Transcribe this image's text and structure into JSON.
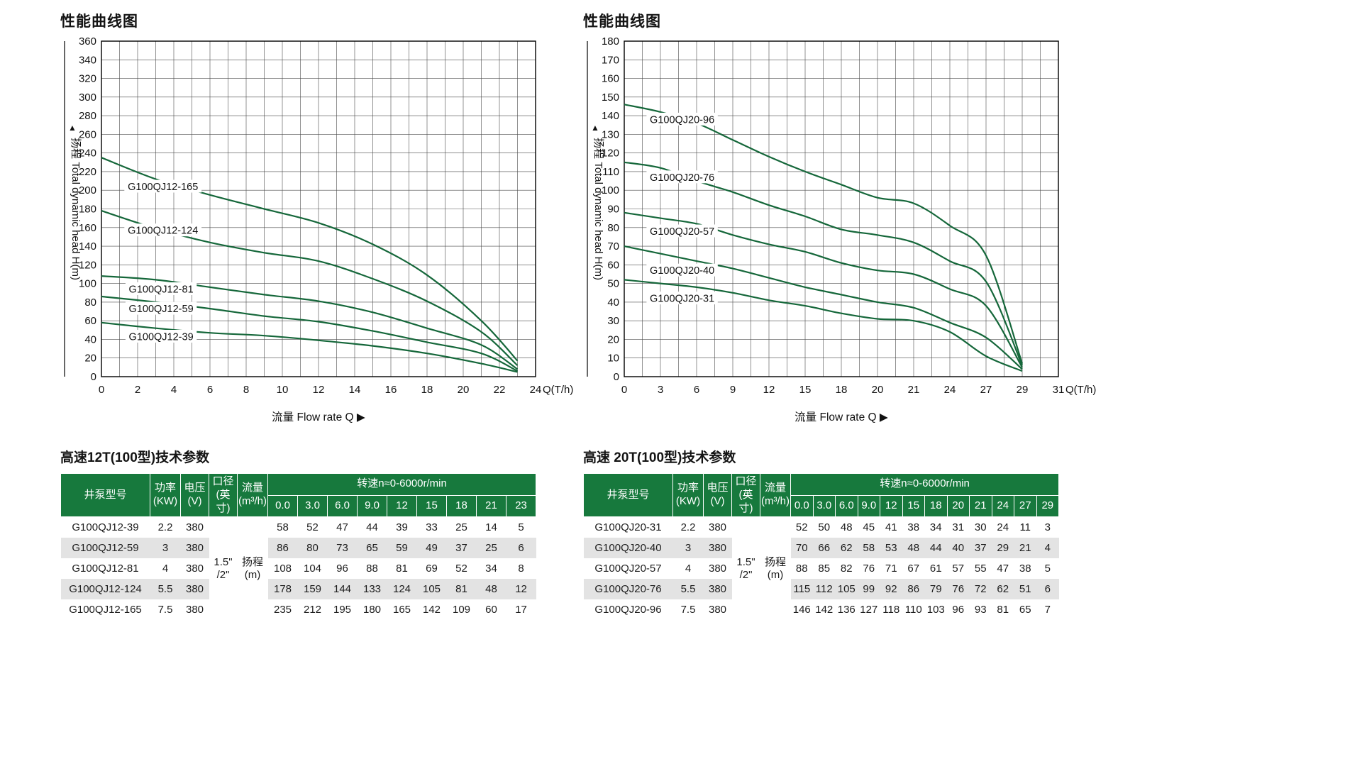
{
  "colors": {
    "curve": "#15673a",
    "table_header_bg": "#17793d",
    "row_alt_bg": "#e3e3e3",
    "grid": "#4a4a4a",
    "border": "#000000"
  },
  "chart_data": [
    {
      "type": "line",
      "title": "性能曲线图",
      "ylabel": "扬程 Total dynamic head H(m)",
      "y_arrow": "▲",
      "xlabel": "流量 Flow rate Q ▶",
      "x_unit": "Q(T/h)",
      "ylim": [
        0,
        360
      ],
      "y_tick_step": 20,
      "x_axis": {
        "equal_spacing": false,
        "max": 24,
        "tick_step": 2,
        "grid_step": 1
      },
      "x": [
        0,
        3,
        6,
        9,
        12,
        15,
        18,
        21,
        23
      ],
      "series": [
        {
          "name": "G100QJ12-165",
          "values": [
            235,
            212,
            195,
            180,
            165,
            142,
            109,
            60,
            17
          ],
          "label_at": [
            3.4,
            204
          ]
        },
        {
          "name": "G100QJ12-124",
          "values": [
            178,
            159,
            144,
            133,
            124,
            105,
            81,
            48,
            12
          ],
          "label_at": [
            3.4,
            157
          ]
        },
        {
          "name": "G100QJ12-81",
          "values": [
            108,
            104,
            96,
            88,
            81,
            69,
            52,
            34,
            8
          ],
          "label_at": [
            3.3,
            94
          ]
        },
        {
          "name": "G100QJ12-59",
          "values": [
            86,
            80,
            73,
            65,
            59,
            49,
            37,
            25,
            6
          ],
          "label_at": [
            3.3,
            73
          ]
        },
        {
          "name": "G100QJ12-39",
          "values": [
            58,
            52,
            47,
            44,
            39,
            33,
            25,
            14,
            5
          ],
          "label_at": [
            3.3,
            43
          ]
        }
      ]
    },
    {
      "type": "line",
      "title": "性能曲线图",
      "ylabel": "扬程 Total dynamic head H(m)",
      "y_arrow": "▲",
      "xlabel": "流量 Flow rate Q ▶",
      "x_unit": "Q(T/h)",
      "ylim": [
        0,
        180
      ],
      "y_tick_step": 10,
      "x_axis": {
        "equal_spacing": true,
        "tick_labels": [
          "0",
          "3",
          "6",
          "9",
          "12",
          "15",
          "18",
          "20",
          "21",
          "24",
          "27",
          "29",
          "31"
        ],
        "grid_step": 0.5
      },
      "x": [
        0,
        3,
        6,
        9,
        12,
        15,
        18,
        20,
        21,
        24,
        27,
        29
      ],
      "series": [
        {
          "name": "G100QJ20-96",
          "values": [
            146,
            142,
            136,
            127,
            118,
            110,
            103,
            96,
            93,
            81,
            65,
            7
          ],
          "label_at": [
            1.6,
            138
          ]
        },
        {
          "name": "G100QJ20-76",
          "values": [
            115,
            112,
            105,
            99,
            92,
            86,
            79,
            76,
            72,
            62,
            51,
            6
          ],
          "label_at": [
            1.6,
            107
          ]
        },
        {
          "name": "G100QJ20-57",
          "values": [
            88,
            85,
            82,
            76,
            71,
            67,
            61,
            57,
            55,
            47,
            38,
            5
          ],
          "label_at": [
            1.6,
            78
          ]
        },
        {
          "name": "G100QJ20-40",
          "values": [
            70,
            66,
            62,
            58,
            53,
            48,
            44,
            40,
            37,
            29,
            21,
            4
          ],
          "label_at": [
            1.6,
            57
          ]
        },
        {
          "name": "G100QJ20-31",
          "values": [
            52,
            50,
            48,
            45,
            41,
            38,
            34,
            31,
            30,
            24,
            11,
            3
          ],
          "label_at": [
            1.6,
            42
          ]
        }
      ]
    }
  ],
  "tables": [
    {
      "title": "高速12T(100型)技术参数",
      "headers": {
        "model": "井泵型号",
        "power": "功率\n(KW)",
        "voltage": "电压\n(V)",
        "diameter": "口径\n(英寸)",
        "flow": "流量\n(m³/h)",
        "speed": "转速n≈0-6000r/min"
      },
      "speed_cols": [
        "0.0",
        "3.0",
        "6.0",
        "9.0",
        "12",
        "15",
        "18",
        "21",
        "23"
      ],
      "merged": {
        "diameter": "1.5\"\n/2\"",
        "flow": "扬程\n(m)"
      },
      "rows": [
        {
          "model": "G100QJ12-39",
          "power": "2.2",
          "voltage": "380",
          "heads": [
            58,
            52,
            47,
            44,
            39,
            33,
            25,
            14,
            5
          ]
        },
        {
          "model": "G100QJ12-59",
          "power": "3",
          "voltage": "380",
          "heads": [
            86,
            80,
            73,
            65,
            59,
            49,
            37,
            25,
            6
          ]
        },
        {
          "model": "G100QJ12-81",
          "power": "4",
          "voltage": "380",
          "heads": [
            108,
            104,
            96,
            88,
            81,
            69,
            52,
            34,
            8
          ]
        },
        {
          "model": "G100QJ12-124",
          "power": "5.5",
          "voltage": "380",
          "heads": [
            178,
            159,
            144,
            133,
            124,
            105,
            81,
            48,
            12
          ]
        },
        {
          "model": "G100QJ12-165",
          "power": "7.5",
          "voltage": "380",
          "heads": [
            235,
            212,
            195,
            180,
            165,
            142,
            109,
            60,
            17
          ]
        }
      ]
    },
    {
      "title": "高速 20T(100型)技术参数",
      "headers": {
        "model": "井泵型号",
        "power": "功率\n(KW)",
        "voltage": "电压\n(V)",
        "diameter": "口径\n(英寸)",
        "flow": "流量\n(m³/h)",
        "speed": "转速n≈0-6000r/min"
      },
      "speed_cols": [
        "0.0",
        "3.0",
        "6.0",
        "9.0",
        "12",
        "15",
        "18",
        "20",
        "21",
        "24",
        "27",
        "29"
      ],
      "merged": {
        "diameter": "1.5\"\n/2\"",
        "flow": "扬程\n(m)"
      },
      "rows": [
        {
          "model": "G100QJ20-31",
          "power": "2.2",
          "voltage": "380",
          "heads": [
            52,
            50,
            48,
            45,
            41,
            38,
            34,
            31,
            30,
            24,
            11,
            3
          ]
        },
        {
          "model": "G100QJ20-40",
          "power": "3",
          "voltage": "380",
          "heads": [
            70,
            66,
            62,
            58,
            53,
            48,
            44,
            40,
            37,
            29,
            21,
            4
          ]
        },
        {
          "model": "G100QJ20-57",
          "power": "4",
          "voltage": "380",
          "heads": [
            88,
            85,
            82,
            76,
            71,
            67,
            61,
            57,
            55,
            47,
            38,
            5
          ]
        },
        {
          "model": "G100QJ20-76",
          "power": "5.5",
          "voltage": "380",
          "heads": [
            115,
            112,
            105,
            99,
            92,
            86,
            79,
            76,
            72,
            62,
            51,
            6
          ]
        },
        {
          "model": "G100QJ20-96",
          "power": "7.5",
          "voltage": "380",
          "heads": [
            146,
            142,
            136,
            127,
            118,
            110,
            103,
            96,
            93,
            81,
            65,
            7
          ]
        }
      ]
    }
  ]
}
